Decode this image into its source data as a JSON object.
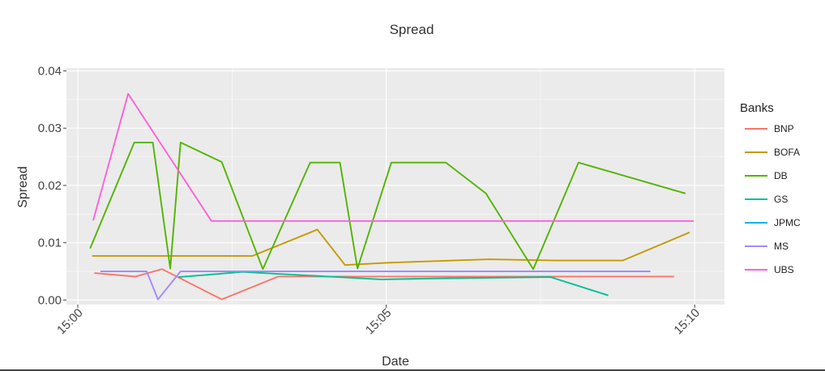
{
  "chart_data": {
    "type": "line",
    "title": "Spread",
    "xlabel": "Date",
    "ylabel": "Spread",
    "x_ticks": [
      "15:00",
      "15:05",
      "15:10"
    ],
    "y_ticks": [
      "0.00",
      "0.01",
      "0.02",
      "0.03",
      "0.04"
    ],
    "xlim": [
      "14:59:49",
      "15:10:29"
    ],
    "ylim": [
      -0.0008,
      0.0405
    ],
    "legend": {
      "title": "Banks",
      "position": "right"
    },
    "grid": true,
    "series": [
      {
        "name": "BNP",
        "color": "#F8766D",
        "x": [
          "15:00:16",
          "15:00:56",
          "15:01:22",
          "15:02:20",
          "15:03:15",
          "15:09:40"
        ],
        "y": [
          0.0047,
          0.0041,
          0.0054,
          0.0001,
          0.0041,
          0.0041
        ]
      },
      {
        "name": "BOFA",
        "color": "#C49A00",
        "x": [
          "15:00:14",
          "15:02:25",
          "15:02:50",
          "15:03:53",
          "15:04:20",
          "15:05:00",
          "15:06:40",
          "15:07:45",
          "15:08:50",
          "15:09:55"
        ],
        "y": [
          0.0077,
          0.0077,
          0.0077,
          0.0123,
          0.0061,
          0.0065,
          0.0071,
          0.0069,
          0.0069,
          0.0118
        ]
      },
      {
        "name": "DB",
        "color": "#53B400",
        "x": [
          "15:00:12",
          "15:00:55",
          "15:01:13",
          "15:01:30",
          "15:01:40",
          "15:02:20",
          "15:03:00",
          "15:03:46",
          "15:04:15",
          "15:04:32",
          "15:05:05",
          "15:05:10",
          "15:05:58",
          "15:06:37",
          "15:07:23",
          "15:08:07",
          "15:09:51"
        ],
        "y": [
          0.009,
          0.0275,
          0.0275,
          0.0055,
          0.0275,
          0.0241,
          0.0054,
          0.024,
          0.024,
          0.0055,
          0.024,
          0.024,
          0.024,
          0.0186,
          0.0054,
          0.024,
          0.0186
        ]
      },
      {
        "name": "GS",
        "color": "#00C094",
        "x": [
          "15:01:38",
          "15:02:40",
          "15:04:55",
          "15:06:00",
          "15:07:40",
          "15:08:36"
        ],
        "y": [
          0.004,
          0.0049,
          0.0036,
          0.0038,
          0.004,
          0.0008
        ]
      },
      {
        "name": "JPMC",
        "color": "#00B6EB",
        "x": [],
        "y": []
      },
      {
        "name": "MS",
        "color": "#A58AFF",
        "x": [
          "15:00:22",
          "15:01:07",
          "15:01:18",
          "15:01:40",
          "15:02:00",
          "15:09:17"
        ],
        "y": [
          0.005,
          0.005,
          0.0001,
          0.005,
          0.005,
          0.005
        ]
      },
      {
        "name": "UBS",
        "color": "#FB61D7",
        "x": [
          "15:00:15",
          "15:00:49",
          "15:02:10",
          "15:09:59"
        ],
        "y": [
          0.0139,
          0.036,
          0.0138,
          0.0138
        ]
      }
    ]
  }
}
